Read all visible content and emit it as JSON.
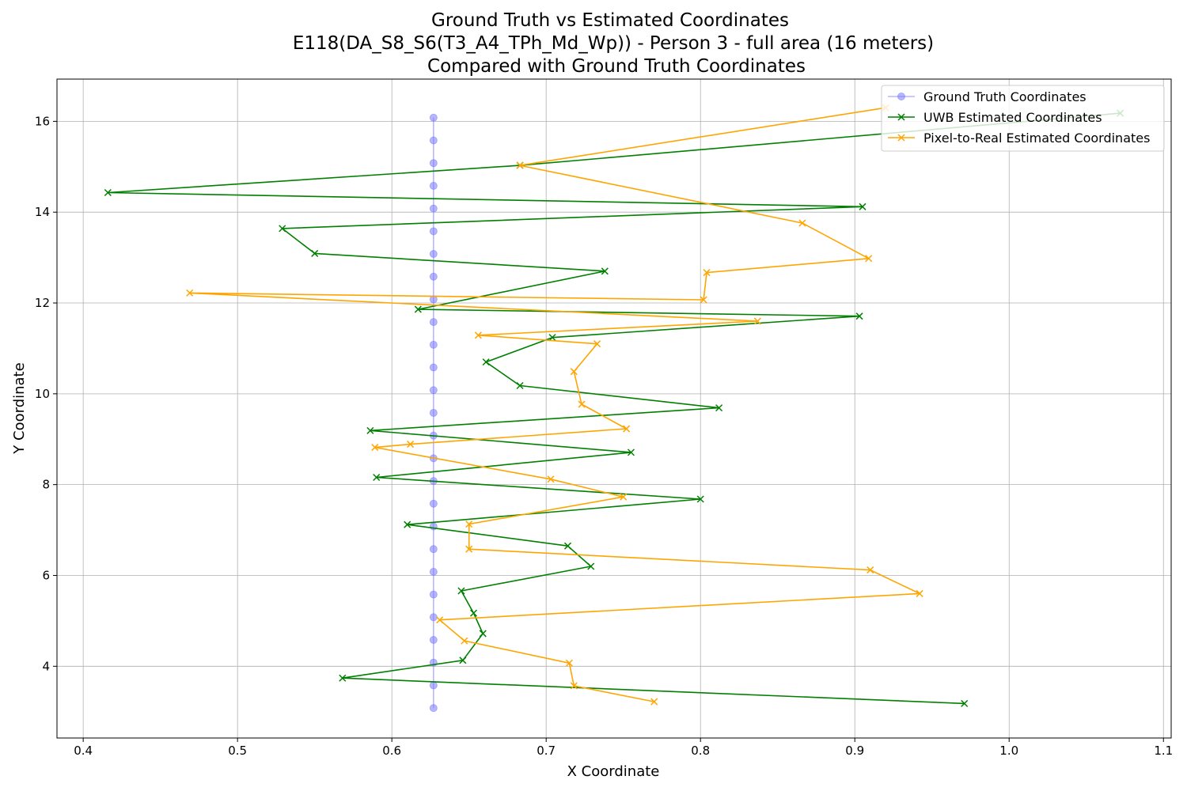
{
  "chart_data": {
    "type": "line",
    "title": "Ground Truth vs Estimated Coordinates",
    "subtitle": "E118(DA_S8_S6(T3_A4_TPh_Md_Wp)) - Person 3 - full area (16 meters)",
    "subtitle2": "Compared with Ground Truth Coordinates",
    "xlabel": "X Coordinate",
    "ylabel": "Y Coordinate",
    "xlim": [
      0.383,
      1.105
    ],
    "ylim": [
      2.42,
      16.93
    ],
    "xticks": [
      "0.4",
      "0.5",
      "0.6",
      "0.7",
      "0.8",
      "0.9",
      "1.0",
      "1.1"
    ],
    "yticks": [
      "4",
      "6",
      "8",
      "10",
      "12",
      "14",
      "16"
    ],
    "grid": true,
    "legend_position": "top-right",
    "series": [
      {
        "name": "Ground Truth Coordinates",
        "color": "#7b7bff",
        "marker": "circle",
        "points": [
          [
            0.627,
            3.08
          ],
          [
            0.627,
            3.58
          ],
          [
            0.627,
            4.08
          ],
          [
            0.627,
            4.58
          ],
          [
            0.627,
            5.08
          ],
          [
            0.627,
            5.58
          ],
          [
            0.627,
            6.08
          ],
          [
            0.627,
            6.58
          ],
          [
            0.627,
            7.08
          ],
          [
            0.627,
            7.58
          ],
          [
            0.627,
            8.08
          ],
          [
            0.627,
            8.58
          ],
          [
            0.627,
            9.08
          ],
          [
            0.627,
            9.58
          ],
          [
            0.627,
            10.08
          ],
          [
            0.627,
            10.58
          ],
          [
            0.627,
            11.08
          ],
          [
            0.627,
            11.58
          ],
          [
            0.627,
            12.08
          ],
          [
            0.627,
            12.58
          ],
          [
            0.627,
            13.08
          ],
          [
            0.627,
            13.58
          ],
          [
            0.627,
            14.08
          ],
          [
            0.627,
            14.58
          ],
          [
            0.627,
            15.08
          ],
          [
            0.627,
            15.58
          ],
          [
            0.627,
            16.08
          ]
        ]
      },
      {
        "name": "UWB Estimated Coordinates",
        "color": "#008000",
        "marker": "x",
        "points": [
          [
            0.971,
            3.18
          ],
          [
            0.568,
            3.74
          ],
          [
            0.646,
            4.13
          ],
          [
            0.659,
            4.72
          ],
          [
            0.653,
            5.17
          ],
          [
            0.645,
            5.66
          ],
          [
            0.729,
            6.2
          ],
          [
            0.714,
            6.65
          ],
          [
            0.61,
            7.12
          ],
          [
            0.8,
            7.68
          ],
          [
            0.59,
            8.16
          ],
          [
            0.755,
            8.71
          ],
          [
            0.586,
            9.19
          ],
          [
            0.812,
            9.69
          ],
          [
            0.683,
            10.18
          ],
          [
            0.661,
            10.7
          ],
          [
            0.704,
            11.24
          ],
          [
            0.903,
            11.71
          ],
          [
            0.617,
            11.86
          ],
          [
            0.738,
            12.7
          ],
          [
            0.55,
            13.09
          ],
          [
            0.529,
            13.64
          ],
          [
            0.905,
            14.12
          ],
          [
            0.416,
            14.43
          ],
          [
            0.683,
            15.03
          ],
          [
            1.072,
            16.18
          ]
        ]
      },
      {
        "name": "Pixel-to-Real Estimated Coordinates",
        "color": "#ffa500",
        "marker": "x",
        "points": [
          [
            0.77,
            3.22
          ],
          [
            0.718,
            3.57
          ],
          [
            0.715,
            4.07
          ],
          [
            0.647,
            4.56
          ],
          [
            0.631,
            5.02
          ],
          [
            0.942,
            5.6
          ],
          [
            0.91,
            6.12
          ],
          [
            0.65,
            6.58
          ],
          [
            0.65,
            7.13
          ],
          [
            0.75,
            7.73
          ],
          [
            0.703,
            8.12
          ],
          [
            0.589,
            8.82
          ],
          [
            0.612,
            8.89
          ],
          [
            0.752,
            9.23
          ],
          [
            0.723,
            9.77
          ],
          [
            0.718,
            10.49
          ],
          [
            0.733,
            11.1
          ],
          [
            0.656,
            11.29
          ],
          [
            0.837,
            11.6
          ],
          [
            0.469,
            12.22
          ],
          [
            0.802,
            12.07
          ],
          [
            0.804,
            12.67
          ],
          [
            0.909,
            12.98
          ],
          [
            0.866,
            13.76
          ],
          [
            0.683,
            15.03
          ],
          [
            0.92,
            16.3
          ]
        ]
      }
    ]
  }
}
